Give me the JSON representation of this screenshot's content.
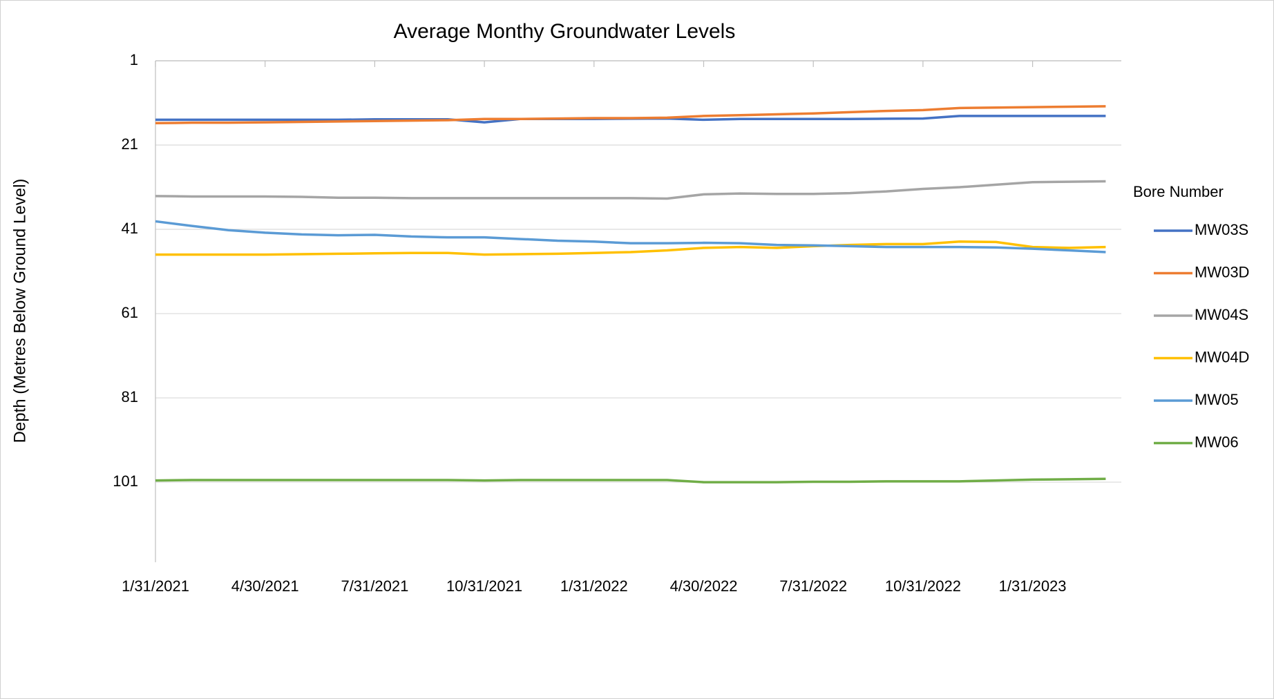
{
  "chart_data": {
    "type": "line",
    "title": "Average Monthy Groundwater Levels",
    "y_label": "Depth (Metres Below Ground Level)",
    "legend_title": "Bore Number",
    "legend_position": "right",
    "grid": true,
    "y_inverted": true,
    "ylim": [
      1,
      120
    ],
    "yticks": [
      1,
      21,
      41,
      61,
      81,
      101
    ],
    "categories": [
      "1/31/2021",
      null,
      null,
      "4/30/2021",
      null,
      null,
      "7/31/2021",
      null,
      null,
      "10/31/2021",
      null,
      null,
      "1/31/2022",
      null,
      null,
      "4/30/2022",
      null,
      null,
      "7/31/2022",
      null,
      null,
      "10/31/2022",
      null,
      null,
      "1/31/2023",
      null,
      null
    ],
    "series": [
      {
        "name": "MW03S",
        "color": "#4472c4",
        "values": [
          15.0,
          15.0,
          15.0,
          15.0,
          15.0,
          15.0,
          14.9,
          14.9,
          14.9,
          15.6,
          14.8,
          14.8,
          14.8,
          14.75,
          14.7,
          15.0,
          14.8,
          14.8,
          14.8,
          14.8,
          14.75,
          14.7,
          14.1,
          14.1,
          14.1,
          14.1,
          14.1
        ]
      },
      {
        "name": "MW03D",
        "color": "#ed7d31",
        "values": [
          15.8,
          15.7,
          15.7,
          15.6,
          15.5,
          15.4,
          15.3,
          15.2,
          15.1,
          14.8,
          14.8,
          14.7,
          14.6,
          14.6,
          14.5,
          14.1,
          13.9,
          13.7,
          13.5,
          13.2,
          12.9,
          12.7,
          12.2,
          12.1,
          12.0,
          11.9,
          11.8
        ]
      },
      {
        "name": "MW04S",
        "color": "#a5a5a5",
        "values": [
          33.1,
          33.2,
          33.2,
          33.2,
          33.3,
          33.5,
          33.5,
          33.6,
          33.6,
          33.6,
          33.6,
          33.6,
          33.6,
          33.6,
          33.7,
          32.7,
          32.5,
          32.6,
          32.6,
          32.4,
          32.0,
          31.4,
          31.0,
          30.4,
          29.8,
          29.7,
          29.6
        ]
      },
      {
        "name": "MW04D",
        "color": "#ffc000",
        "values": [
          47.0,
          47.0,
          47.0,
          47.0,
          46.9,
          46.8,
          46.7,
          46.6,
          46.6,
          47.0,
          46.9,
          46.8,
          46.6,
          46.4,
          46.0,
          45.4,
          45.2,
          45.4,
          45.0,
          44.7,
          44.5,
          44.5,
          43.9,
          44.0,
          45.2,
          45.4,
          45.2
        ]
      },
      {
        "name": "MW05",
        "color": "#5b9bd5",
        "values": [
          39.1,
          40.2,
          41.2,
          41.8,
          42.2,
          42.4,
          42.3,
          42.7,
          42.9,
          42.9,
          43.3,
          43.7,
          43.9,
          44.3,
          44.3,
          44.2,
          44.3,
          44.7,
          44.8,
          45.0,
          45.2,
          45.2,
          45.2,
          45.3,
          45.6,
          46.0,
          46.4
        ]
      },
      {
        "name": "MW06",
        "color": "#70ad47",
        "values": [
          100.6,
          100.5,
          100.5,
          100.5,
          100.5,
          100.5,
          100.5,
          100.5,
          100.5,
          100.6,
          100.5,
          100.5,
          100.5,
          100.5,
          100.5,
          101.0,
          101.0,
          101.0,
          100.9,
          100.9,
          100.8,
          100.8,
          100.8,
          100.6,
          100.4,
          100.3,
          100.2
        ]
      }
    ]
  }
}
